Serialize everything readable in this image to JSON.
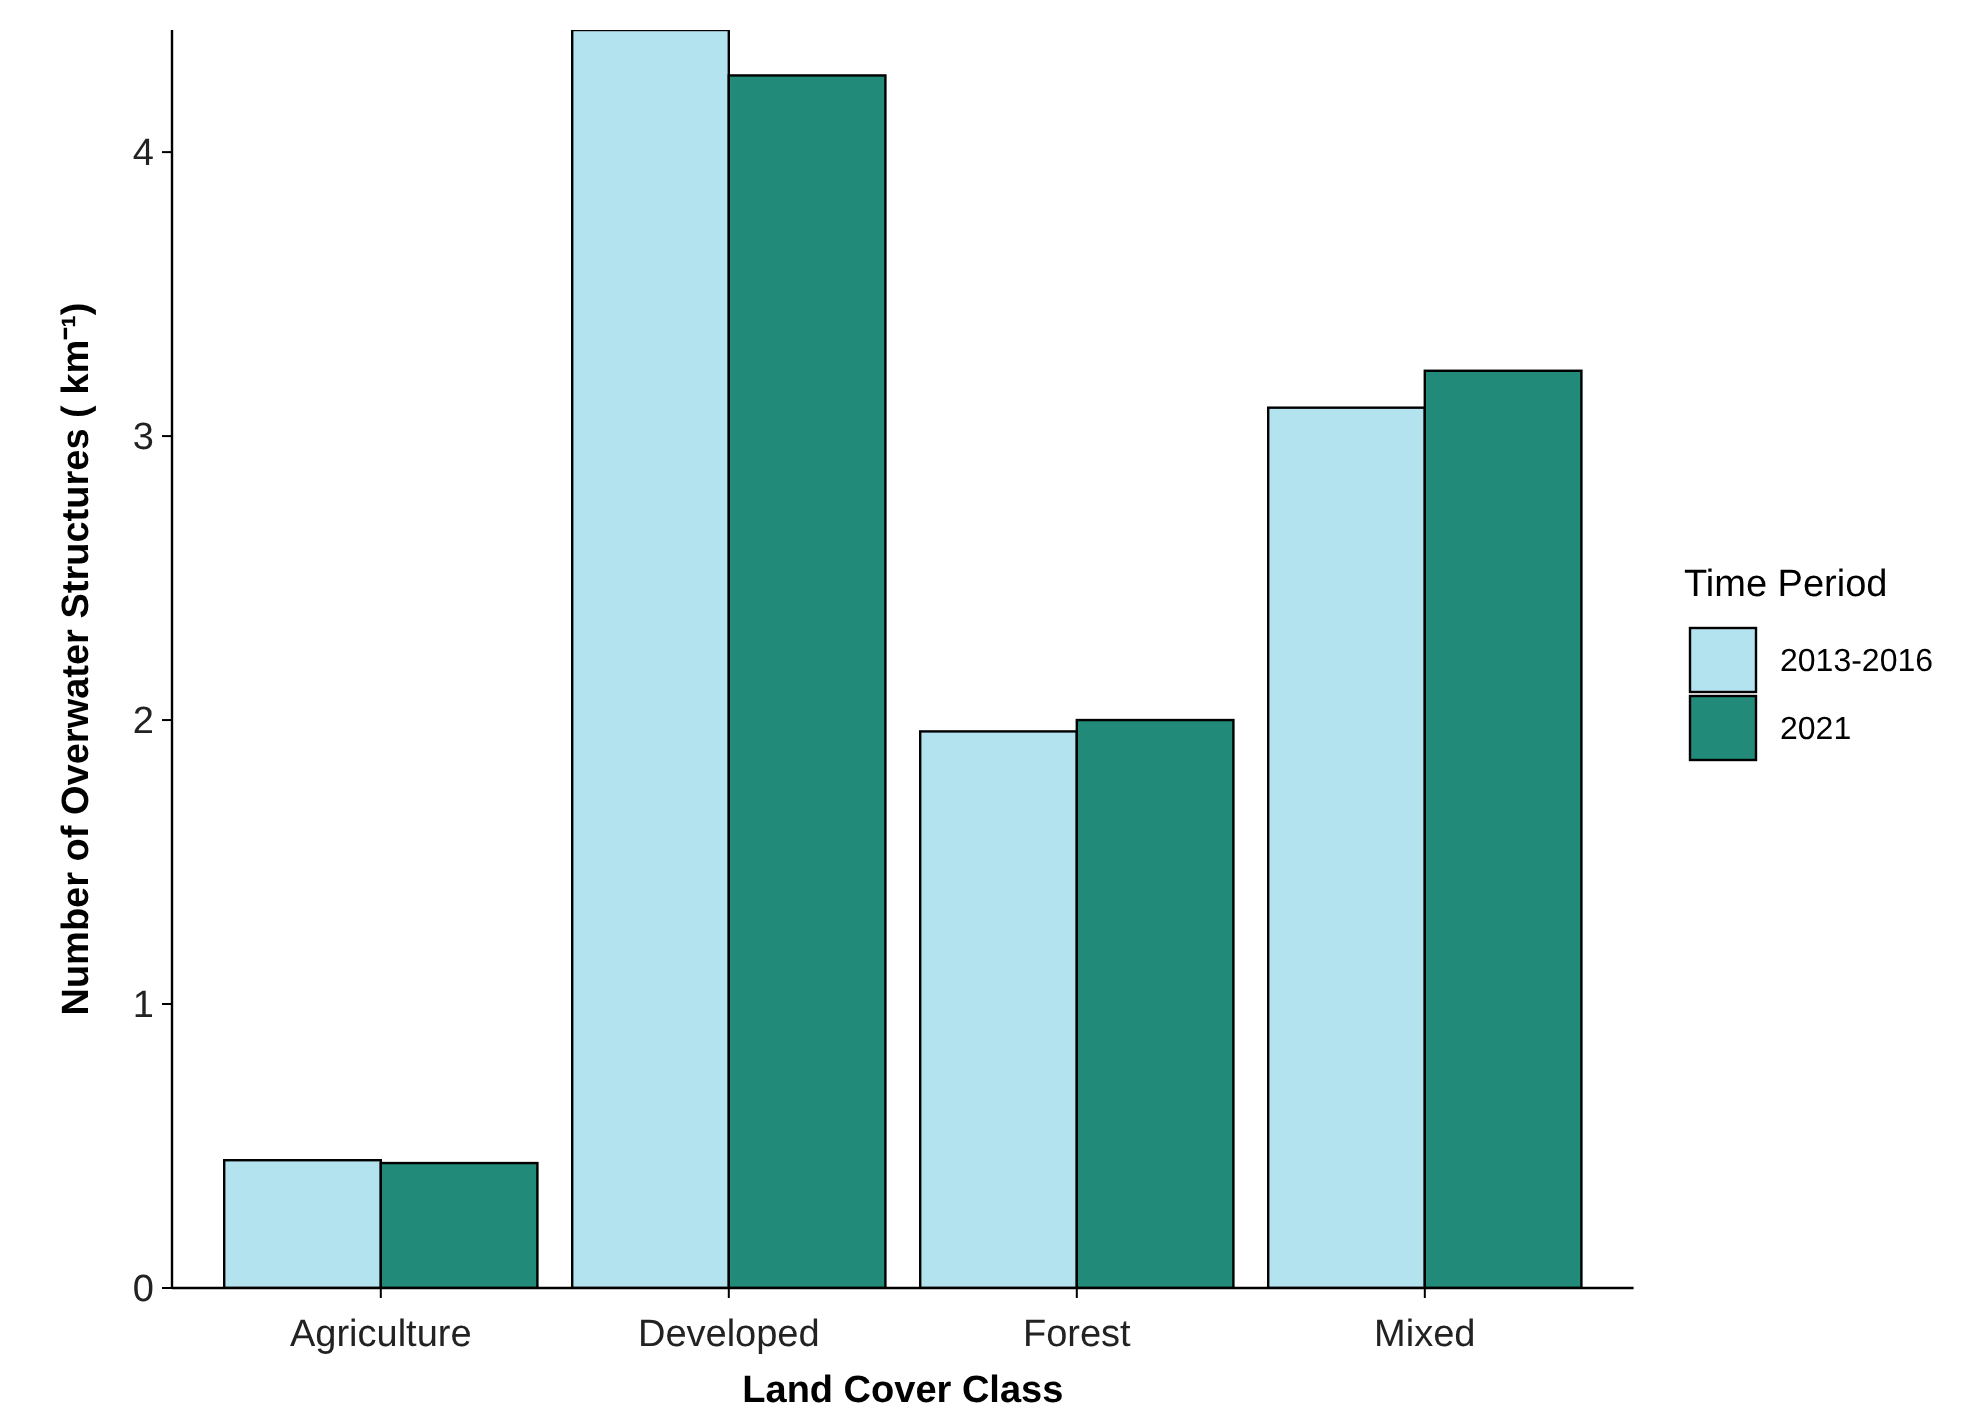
{
  "chart_data": {
    "type": "bar",
    "xlabel": "Land Cover Class",
    "ylabel": "Number of Overwater Structures ( km⁻¹)",
    "legend_title": "Time Period",
    "categories": [
      "Agriculture",
      "Developed",
      "Forest",
      "Mixed"
    ],
    "series": [
      {
        "name": "2013-2016",
        "color": "#b3e3ee",
        "values": [
          0.45,
          4.43,
          1.96,
          3.1
        ]
      },
      {
        "name": "2021",
        "color": "#218a78",
        "values": [
          0.44,
          4.27,
          2.0,
          3.23
        ]
      }
    ],
    "ylim": [
      0,
      4.43
    ],
    "yticks": [
      0,
      1,
      2,
      3,
      4
    ],
    "grid": false,
    "legend": "right"
  }
}
